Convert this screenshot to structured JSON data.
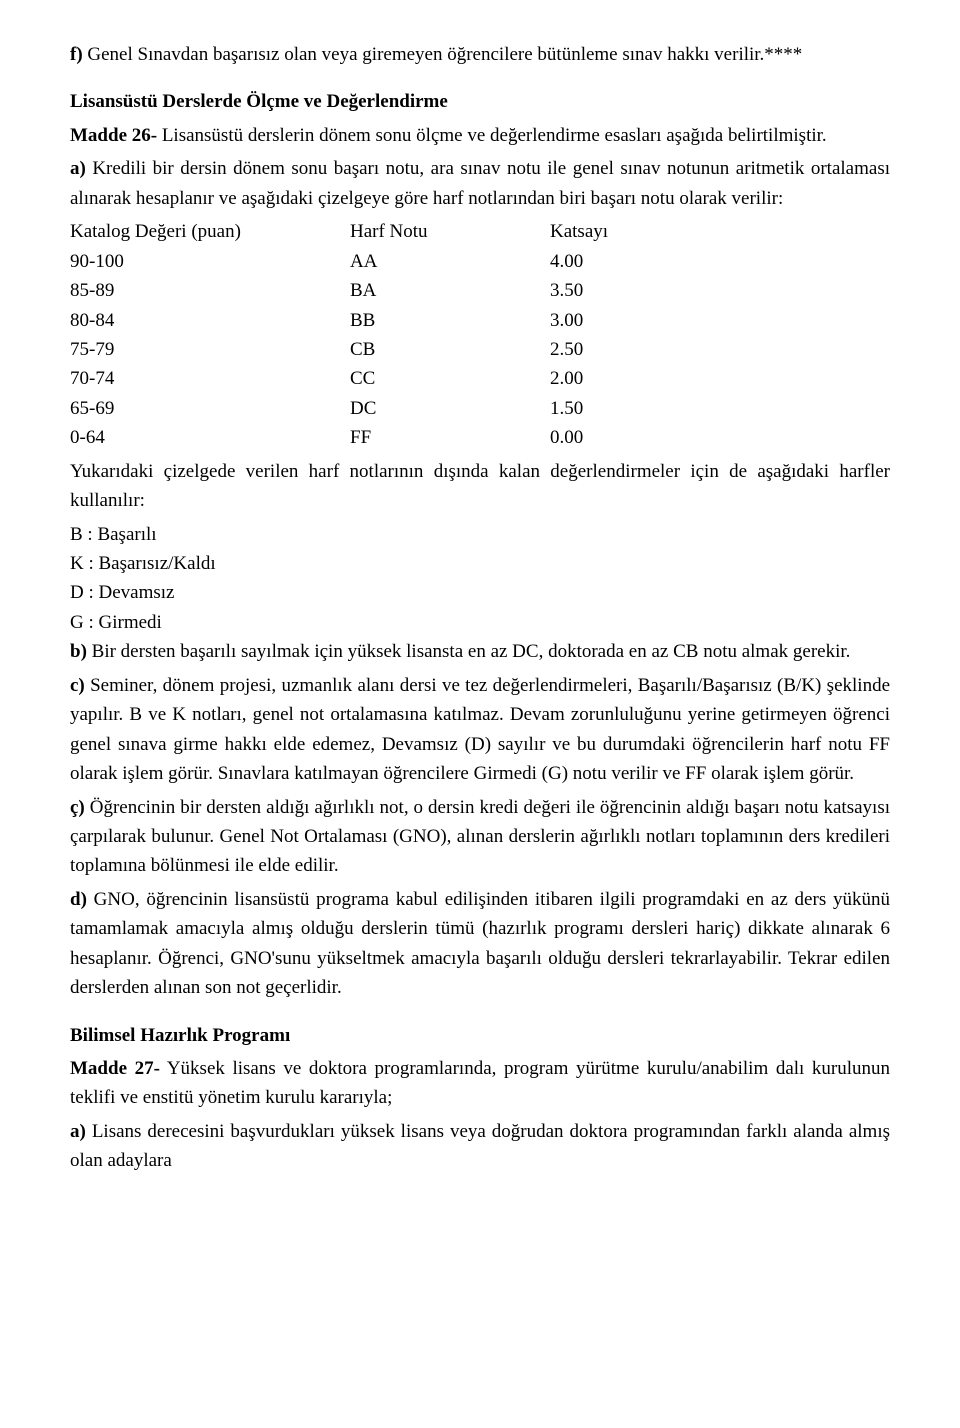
{
  "p1_prefix": "f)",
  "p1_body": " Genel Sınavdan başarısız olan veya giremeyen öğrencilere bütünleme sınav hakkı verilir.****",
  "section1_title": "Lisansüstü Derslerde Ölçme ve Değerlendirme",
  "madde26_label": "Madde 26-",
  "madde26_body": " Lisansüstü derslerin dönem sonu ölçme ve değerlendirme esasları aşağıda belirtilmiştir.",
  "a_prefix": "a)",
  "a_body": " Kredili bir dersin dönem sonu başarı notu, ara sınav notu ile genel sınav notunun aritmetik ortalaması alınarak hesaplanır ve aşağıdaki çizelgeye göre harf notlarından biri başarı notu olarak verilir:",
  "table_header": {
    "c1": "Katalog Değeri (puan)",
    "c2": "Harf Notu",
    "c3": "Katsayı"
  },
  "grades": [
    {
      "range": "90-100",
      "letter": "AA",
      "coef": "4.00"
    },
    {
      "range": "85-89",
      "letter": "BA",
      "coef": "3.50"
    },
    {
      "range": "80-84",
      "letter": "BB",
      "coef": "3.00"
    },
    {
      "range": "75-79",
      "letter": "CB",
      "coef": "2.50"
    },
    {
      "range": "70-74",
      "letter": "CC",
      "coef": "2.00"
    },
    {
      "range": "65-69",
      "letter": "DC",
      "coef": "1.50"
    },
    {
      "range": "0-64",
      "letter": "FF",
      "coef": "0.00"
    }
  ],
  "after_table": "Yukarıdaki çizelgede verilen harf notlarının dışında kalan değerlendirmeler için de aşağıdaki harfler kullanılır:",
  "letters": {
    "b": "B : Başarılı",
    "k": "K : Başarısız/Kaldı",
    "d": "D : Devamsız",
    "g": "G : Girmedi"
  },
  "b_prefix": "b)",
  "b_body": " Bir dersten başarılı sayılmak için yüksek lisansta en az DC, doktorada en az CB notu almak gerekir.",
  "c_prefix": "c)",
  "c_body": " Seminer, dönem projesi, uzmanlık alanı dersi ve tez değerlendirmeleri, Başarılı/Başarısız (B/K) şeklinde yapılır. B ve K notları, genel not ortalamasına katılmaz. Devam zorunluluğunu yerine getirmeyen öğrenci genel sınava girme hakkı elde edemez, Devamsız (D) sayılır ve bu durumdaki öğrencilerin harf notu FF olarak işlem görür. Sınavlara katılmayan öğrencilere Girmedi (G) notu verilir ve FF olarak işlem görür.",
  "cc_prefix": "ç)",
  "cc_body": " Öğrencinin bir dersten aldığı ağırlıklı not, o dersin kredi değeri ile öğrencinin aldığı başarı notu katsayısı çarpılarak bulunur. Genel Not Ortalaması (GNO), alınan derslerin ağırlıklı notları toplamının ders kredileri toplamına bölünmesi ile elde edilir.",
  "d_prefix": "d)",
  "d_body": " GNO, öğrencinin lisansüstü programa kabul edilişinden itibaren ilgili programdaki en az ders yükünü tamamlamak amacıyla almış olduğu derslerin tümü (hazırlık programı dersleri hariç) dikkate alınarak 6 hesaplanır. Öğrenci, GNO'sunu yükseltmek amacıyla başarılı olduğu dersleri tekrarlayabilir. Tekrar edilen derslerden alınan son not geçerlidir.",
  "section2_title": "Bilimsel Hazırlık Programı",
  "madde27_label": "Madde 27-",
  "madde27_body": " Yüksek lisans ve doktora programlarında, program yürütme kurulu/anabilim dalı kurulunun teklifi ve enstitü yönetim kurulu kararıyla;",
  "a2_prefix": "a)",
  "a2_body": " Lisans derecesini başvurdukları yüksek lisans veya doğrudan doktora programından farklı alanda almış olan adaylara"
}
